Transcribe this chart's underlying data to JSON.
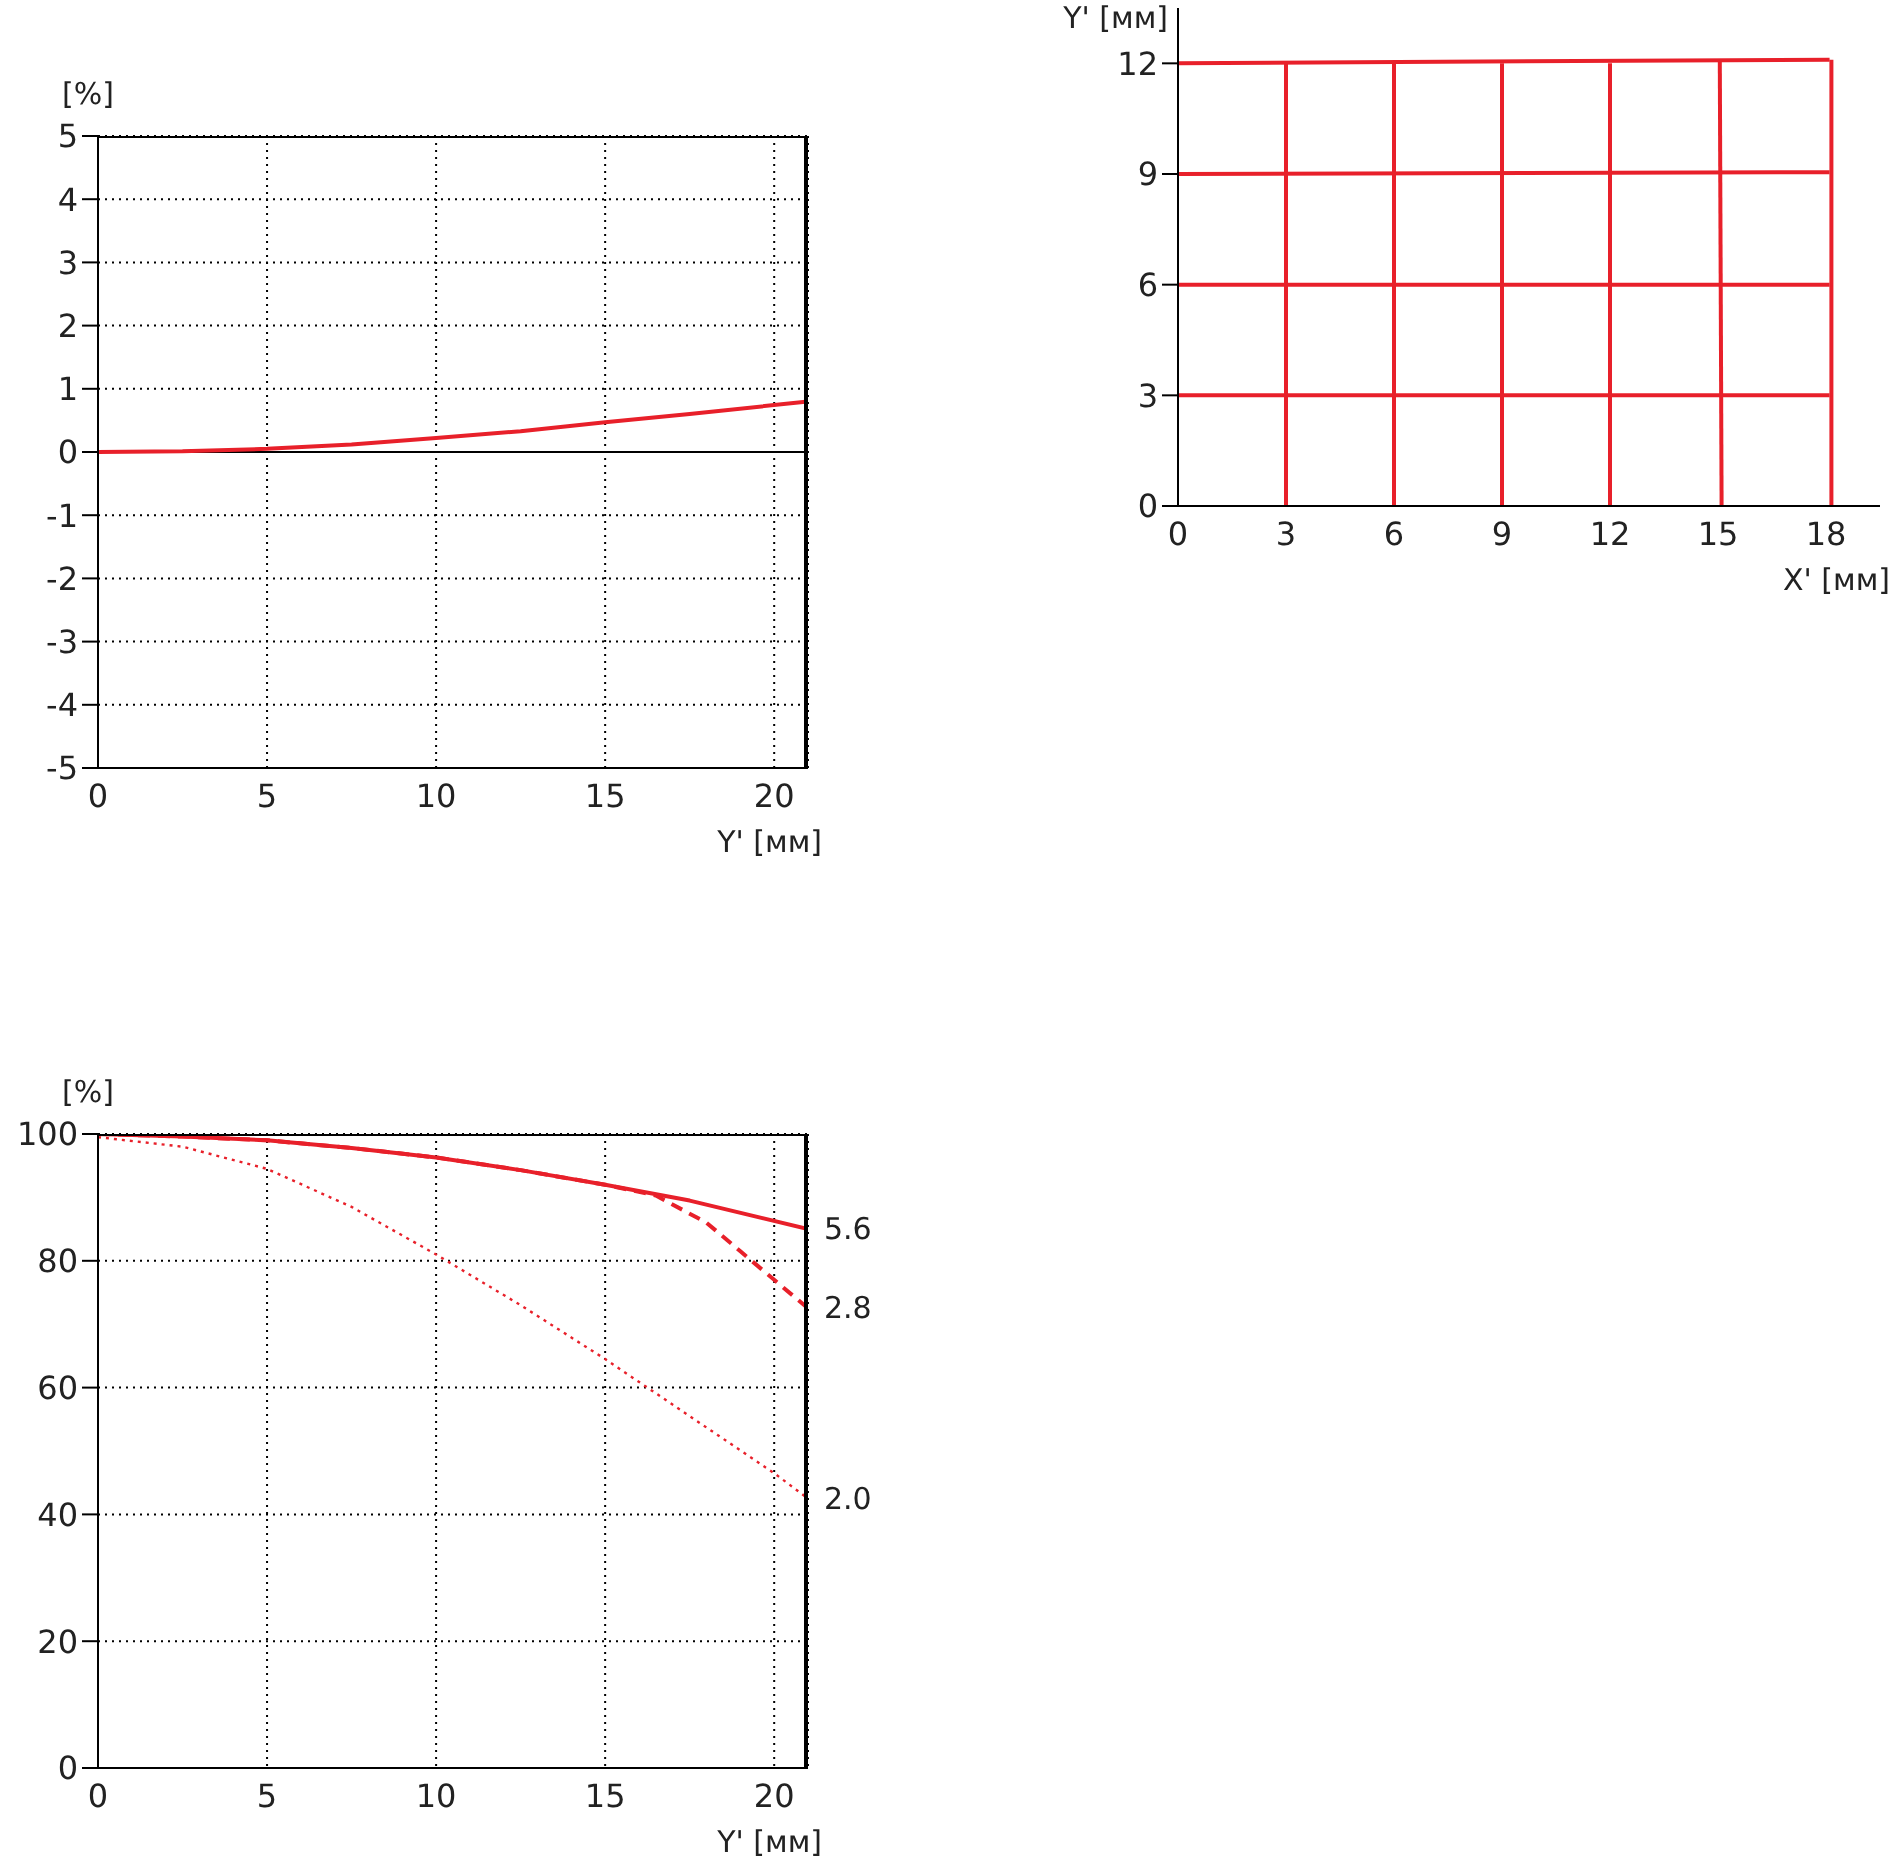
{
  "chart_data": [
    {
      "type": "line",
      "xlabel": "Y' [мм]",
      "ylabel": "[%]",
      "xlim": [
        0,
        21
      ],
      "ylim": [
        -5,
        5
      ],
      "xticks": [
        0,
        5,
        10,
        15,
        20
      ],
      "yticks": [
        -5,
        -4,
        -3,
        -2,
        -1,
        0,
        1,
        2,
        3,
        4,
        5
      ],
      "grid": true,
      "ref_lines": [
        {
          "axis": "y",
          "value": 0,
          "color": "#000000"
        }
      ],
      "series": [
        {
          "color": "#e8202a",
          "x": [
            0,
            2.5,
            5,
            7.5,
            10,
            12.5,
            15,
            17.5,
            21
          ],
          "values": [
            0,
            0.01,
            0.05,
            0.12,
            0.22,
            0.33,
            0.47,
            0.6,
            0.8
          ]
        }
      ]
    },
    {
      "type": "line",
      "xlabel": "X' [мм]",
      "ylabel": "Y' [мм]",
      "xlim": [
        0,
        19.5
      ],
      "ylim": [
        0,
        13.5
      ],
      "xticks": [
        0,
        3,
        6,
        9,
        12,
        15,
        18
      ],
      "yticks": [
        0,
        3,
        6,
        9,
        12
      ],
      "grid": false,
      "series": [
        {
          "color": "#e8202a",
          "x": [
            0,
            18.1
          ],
          "values": [
            3,
            3
          ]
        },
        {
          "color": "#e8202a",
          "x": [
            0,
            18.1
          ],
          "values": [
            6,
            6
          ]
        },
        {
          "color": "#e8202a",
          "x": [
            0,
            18.1
          ],
          "values": [
            9,
            9.05
          ]
        },
        {
          "color": "#e8202a",
          "x": [
            0,
            18.1
          ],
          "values": [
            12,
            12.1
          ]
        },
        {
          "color": "#e8202a",
          "x": [
            3,
            3
          ],
          "values": [
            0,
            12
          ]
        },
        {
          "color": "#e8202a",
          "x": [
            6,
            6
          ],
          "values": [
            0,
            12
          ]
        },
        {
          "color": "#e8202a",
          "x": [
            9,
            9
          ],
          "values": [
            0,
            12
          ]
        },
        {
          "color": "#e8202a",
          "x": [
            12,
            12
          ],
          "values": [
            0,
            12
          ]
        },
        {
          "color": "#e8202a",
          "x": [
            15.1,
            15.05
          ],
          "values": [
            0,
            12.05
          ]
        },
        {
          "color": "#e8202a",
          "x": [
            18.15,
            18.15
          ],
          "values": [
            0,
            12.1
          ]
        }
      ]
    },
    {
      "type": "line",
      "xlabel": "Y' [мм]",
      "ylabel": "[%]",
      "xlim": [
        0,
        21
      ],
      "ylim": [
        0,
        100
      ],
      "xticks": [
        0,
        5,
        10,
        15,
        20
      ],
      "yticks": [
        0,
        20,
        40,
        60,
        80,
        100
      ],
      "grid": true,
      "series": [
        {
          "name": "5.6",
          "color": "#e8202a",
          "line_style": "solid",
          "x": [
            0,
            2.5,
            5,
            7.5,
            10,
            12.5,
            15,
            17.5,
            21
          ],
          "values": [
            100,
            99.6,
            99,
            97.8,
            96.3,
            94.3,
            92,
            89.5,
            85
          ]
        },
        {
          "name": "2.8",
          "color": "#e8202a",
          "line_style": "dashed",
          "x": [
            0,
            2.5,
            5,
            7.5,
            10,
            12.5,
            15,
            16.5,
            18,
            19,
            20,
            21
          ],
          "values": [
            100,
            99.6,
            99,
            97.8,
            96.3,
            94.3,
            92,
            90.3,
            86,
            81.5,
            77,
            72.5
          ]
        },
        {
          "name": "2.0",
          "color": "#e8202a",
          "line_style": "dotted",
          "x": [
            0,
            2.5,
            5,
            7.5,
            10,
            12.5,
            15,
            17.5,
            20,
            21
          ],
          "values": [
            99.5,
            98,
            94.5,
            88.5,
            81,
            73,
            64.5,
            55.5,
            46.5,
            42.5
          ]
        }
      ]
    }
  ]
}
